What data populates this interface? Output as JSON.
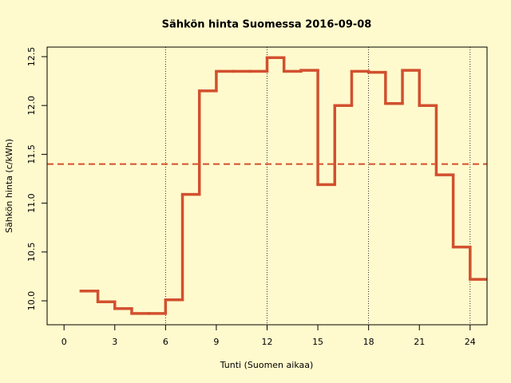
{
  "chart_data": {
    "type": "step",
    "title": "Sähkön hinta Suomessa 2016-09-08",
    "x_label": "Tunti (Suomen aikaa)",
    "y_label": "Sähkön hinta (c/kWh)",
    "x": [
      1,
      2,
      3,
      4,
      5,
      6,
      7,
      8,
      9,
      10,
      11,
      12,
      13,
      14,
      15,
      16,
      17,
      18,
      19,
      20,
      21,
      22,
      23,
      24
    ],
    "series": [
      {
        "color": "#d2502f",
        "values": [
          10.1,
          9.99,
          9.92,
          9.87,
          9.87,
          10.01,
          11.09,
          12.15,
          12.35,
          12.35,
          12.35,
          12.49,
          12.35,
          12.36,
          11.19,
          12.0,
          12.35,
          12.34,
          12.02,
          12.36,
          12.0,
          11.29,
          10.55,
          10.22
        ]
      }
    ],
    "mean_line": {
      "value": 11.4,
      "color": "#d2502f"
    },
    "vlines": [
      6,
      12,
      18,
      24
    ],
    "xlim": [
      -1,
      25
    ],
    "ylim": [
      9.755,
      12.598
    ],
    "xticks": [
      0,
      3,
      6,
      9,
      12,
      15,
      18,
      21,
      24
    ],
    "yticks": [
      {
        "value": 10,
        "label": "10.0"
      },
      10.5,
      {
        "value": 11,
        "label": "11.0"
      },
      11.5,
      {
        "value": 12,
        "label": "12.0"
      },
      12.5
    ]
  }
}
